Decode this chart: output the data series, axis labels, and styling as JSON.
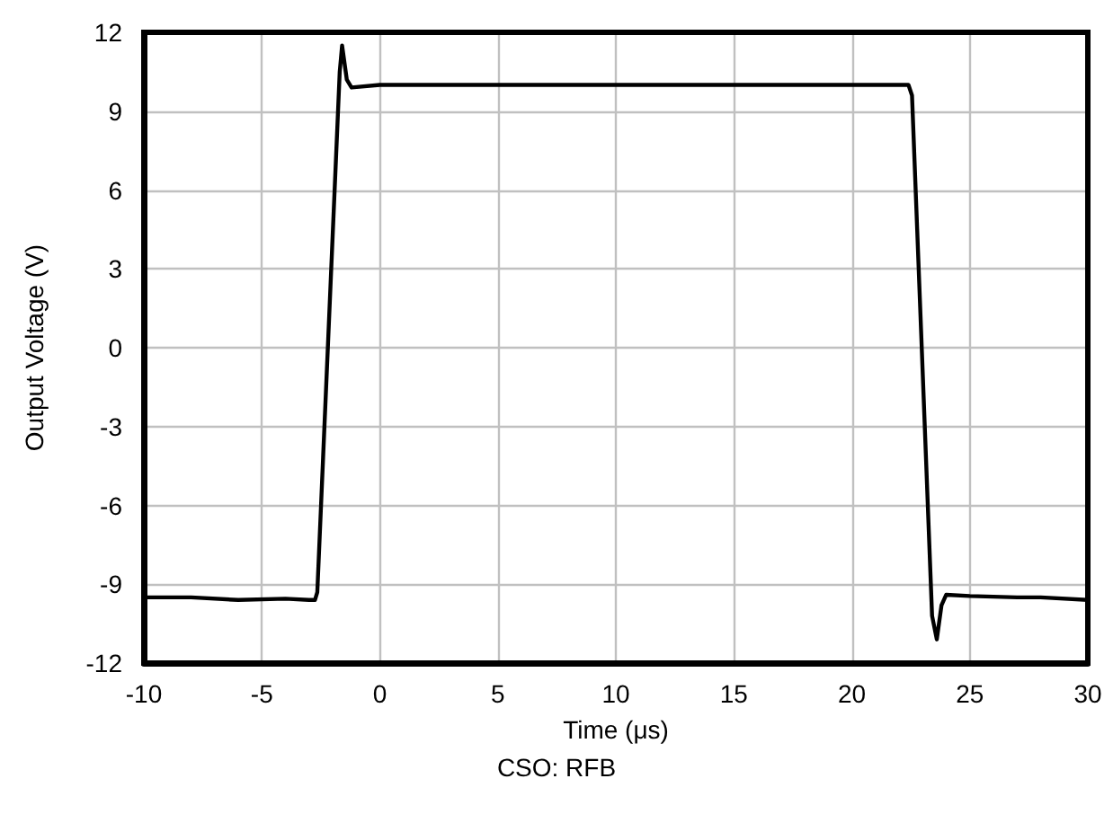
{
  "chart_data": {
    "type": "line",
    "xlabel": "Time (μs)",
    "ylabel": "Output Voltage (V)",
    "annotations": [
      "CSO: RFB"
    ],
    "x": [
      -10,
      -8,
      -6,
      -4,
      -3,
      -2.75,
      -2.65,
      -1.7,
      -1.6,
      -1.4,
      -1.2,
      0,
      2,
      5,
      10,
      15,
      20,
      22,
      22.4,
      22.55,
      23.4,
      23.6,
      23.8,
      24.0,
      25,
      27,
      28,
      30
    ],
    "series": [
      {
        "color": "#000000",
        "values": [
          -9.5,
          -9.5,
          -9.6,
          -9.55,
          -9.6,
          -9.6,
          -9.3,
          10.5,
          11.5,
          10.2,
          9.9,
          10,
          10,
          10,
          10,
          10,
          10,
          10,
          10,
          9.6,
          -10.2,
          -11.1,
          -9.8,
          -9.4,
          -9.45,
          -9.5,
          -9.5,
          -9.6
        ]
      }
    ],
    "xlim": [
      -10,
      30
    ],
    "xticks": [
      -10,
      -5,
      0,
      5,
      10,
      15,
      20,
      25,
      30
    ],
    "ylim": [
      -12,
      12
    ],
    "yticks": [
      -12,
      -9,
      -6,
      -3,
      0,
      3,
      6,
      9,
      12
    ],
    "grid": true,
    "marker": "none",
    "line_style": "solid"
  }
}
